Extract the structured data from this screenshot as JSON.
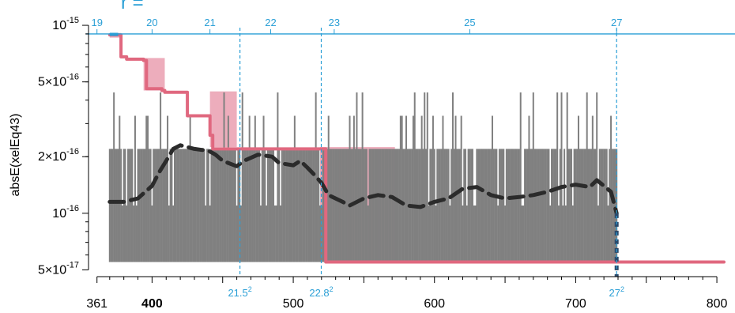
{
  "chart_data": {
    "type": "line",
    "ylabel": "absE(xelEq43)",
    "y_scale": "log",
    "xlim": [
      355,
      805
    ],
    "ylim": [
      4.6e-17,
      1.05e-15
    ],
    "x_ticks": [
      {
        "value": 361,
        "label": "361",
        "bold": false
      },
      {
        "value": 400,
        "label": "400",
        "bold": true
      },
      {
        "value": 500,
        "label": "500",
        "bold": false
      },
      {
        "value": 600,
        "label": "600",
        "bold": false
      },
      {
        "value": 700,
        "label": "700",
        "bold": false
      },
      {
        "value": 800,
        "label": "800",
        "bold": false
      }
    ],
    "y_ticks": [
      {
        "value": 1e-15,
        "mant": "",
        "exp": "-15"
      },
      {
        "value": 5e-16,
        "mant": "5×",
        "exp": "-16"
      },
      {
        "value": 2e-16,
        "mant": "2×",
        "exp": "-16"
      },
      {
        "value": 1e-16,
        "mant": "",
        "exp": "-16"
      },
      {
        "value": 5e-17,
        "mant": "5×",
        "exp": "-17"
      }
    ],
    "top_axis": {
      "title": "r =",
      "line_value": 9e-16,
      "ticks": [
        {
          "r": 19,
          "x": 361,
          "label": "19"
        },
        {
          "r": 20,
          "x": 400,
          "label": "20"
        },
        {
          "r": 21,
          "x": 441,
          "label": "21"
        },
        {
          "r": 22,
          "x": 484,
          "label": "22"
        },
        {
          "r": 23,
          "x": 529,
          "label": "23"
        },
        {
          "r": 25,
          "x": 625,
          "label": "25"
        },
        {
          "r": 27,
          "x": 729,
          "label": "27"
        }
      ]
    },
    "reference_lines": [
      {
        "x": 462.25,
        "base": "21.5",
        "exp": "2"
      },
      {
        "x": 519.84,
        "base": "22.8",
        "exp": "2"
      },
      {
        "x": 729,
        "base": "27",
        "exp": "2"
      }
    ],
    "series": [
      {
        "role": "raw",
        "color": "#808080",
        "x_range": [
          370,
          729
        ],
        "baseline": 5.5e-17,
        "levels": [
          1.1e-16,
          2.2e-16,
          3.3e-16,
          4.4e-16
        ]
      },
      {
        "role": "running_max",
        "color": "#e0687f",
        "x": [
          370,
          376,
          378,
          382,
          387,
          394,
          396,
          407,
          409,
          423,
          425,
          441,
          443,
          458,
          460,
          521,
          523,
          805
        ],
        "y": [
          8.9e-16,
          8.9e-16,
          6.8e-16,
          6.6e-16,
          6.6e-16,
          6.5e-16,
          4.6e-16,
          4.5e-16,
          4.4e-16,
          4.4e-16,
          3.3e-16,
          2.6e-16,
          2.2e-16,
          2.2e-16,
          2.2e-16,
          2.2e-16,
          5.5e-17,
          5.5e-17
        ]
      },
      {
        "role": "smoothed_mean",
        "color": "#2b2b2b",
        "x": [
          370,
          380,
          390,
          400,
          405,
          410,
          415,
          420,
          430,
          440,
          445,
          450,
          460,
          465,
          475,
          485,
          490,
          500,
          505,
          510,
          515,
          520,
          525,
          535,
          540,
          550,
          560,
          570,
          580,
          590,
          600,
          610,
          620,
          630,
          640,
          650,
          660,
          670,
          680,
          690,
          700,
          710,
          715,
          720,
          725,
          729
        ],
        "y": [
          1.15e-16,
          1.15e-16,
          1.2e-16,
          1.4e-16,
          1.65e-16,
          1.9e-16,
          2.2e-16,
          2.3e-16,
          2.2e-16,
          2.15e-16,
          2.05e-16,
          1.9e-16,
          1.78e-16,
          1.9e-16,
          2.05e-16,
          2e-16,
          1.85e-16,
          1.8e-16,
          1.9e-16,
          1.75e-16,
          1.6e-16,
          1.45e-16,
          1.25e-16,
          1.15e-16,
          1.1e-16,
          1.2e-16,
          1.25e-16,
          1.22e-16,
          1.1e-16,
          1.08e-16,
          1.15e-16,
          1.2e-16,
          1.35e-16,
          1.38e-16,
          1.25e-16,
          1.2e-16,
          1.22e-16,
          1.25e-16,
          1.3e-16,
          1.38e-16,
          1.42e-16,
          1.38e-16,
          1.5e-16,
          1.4e-16,
          1.3e-16,
          1e-16
        ]
      }
    ],
    "shaded_regions": [
      {
        "x0": 370,
        "x1": 378,
        "y0": 8.6e-16,
        "y1": 9.1e-16
      },
      {
        "x0": 394,
        "x1": 409,
        "y0": 4.5e-16,
        "y1": 6.7e-16
      },
      {
        "x0": 441,
        "x1": 460,
        "y0": 2.25e-16,
        "y1": 4.45e-16
      },
      {
        "x0": 519,
        "x1": 572,
        "y0": 5.5e-17,
        "y1": 2.25e-16
      }
    ]
  }
}
